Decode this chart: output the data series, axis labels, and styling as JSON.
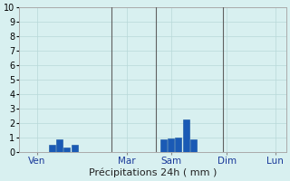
{
  "title": "",
  "xlabel": "Précipitations 24h ( mm )",
  "ylabel": "",
  "ylim": [
    0,
    10
  ],
  "yticks": [
    0,
    1,
    2,
    3,
    4,
    5,
    6,
    7,
    8,
    9,
    10
  ],
  "background_color": "#d8f0f0",
  "grid_color": "#b8d8d8",
  "bar_color": "#1a5ab5",
  "day_labels": [
    "Ven",
    "Mar",
    "Sam",
    "Dim",
    "Lun"
  ],
  "bars": [
    {
      "x": 4,
      "height": 0.5
    },
    {
      "x": 5,
      "height": 0.9
    },
    {
      "x": 6,
      "height": 0.35
    },
    {
      "x": 7,
      "height": 0.55
    },
    {
      "x": 19,
      "height": 0.9
    },
    {
      "x": 20,
      "height": 0.95
    },
    {
      "x": 21,
      "height": 1.0
    },
    {
      "x": 22,
      "height": 2.3
    },
    {
      "x": 23,
      "height": 0.9
    }
  ],
  "total_bars": 36,
  "vline_x": [
    12,
    18,
    27
  ],
  "day_tick_x": [
    2,
    14,
    20,
    27.5,
    34
  ],
  "xlim": [
    -0.5,
    35.5
  ]
}
